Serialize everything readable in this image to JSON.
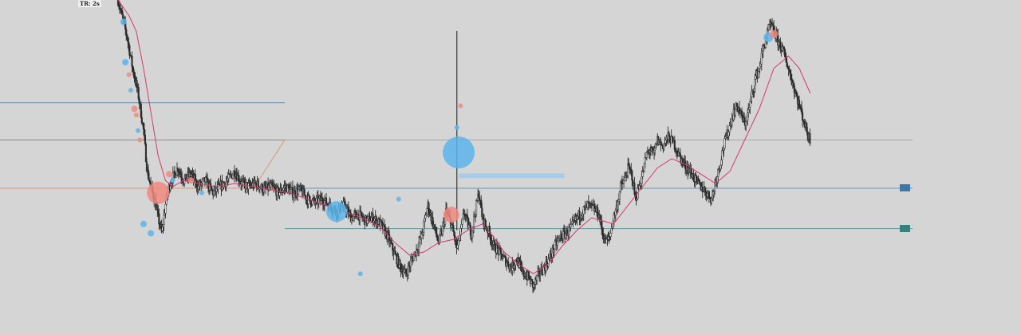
{
  "timeframe_label": "TR: 2s",
  "level_tags": [
    {
      "text": "",
      "color": "#3f77a8",
      "price": 39.5
    },
    {
      "text": "",
      "color": "#3a7f7a",
      "price": 26.5
    }
  ],
  "chart_data": {
    "type": "candlestick",
    "title": "",
    "xlabel": "",
    "ylabel": "",
    "y_range": [
      0,
      100
    ],
    "x_range": [
      0,
      430
    ],
    "grid": false,
    "colors": {
      "background": "#d5d5d5",
      "candle": "#2b2b2b",
      "moving_average": "#d43a6b",
      "bubble_buy": "#5ab4ea",
      "bubble_sell": "#f08a80",
      "level_orange": "#d69a78",
      "level_blue": "#6a93b3",
      "level_teal": "#5f9a9c",
      "liquidity_band": "#9ecbea"
    },
    "price_path": [
      [
        0,
        100
      ],
      [
        5,
        88
      ],
      [
        8,
        78
      ],
      [
        11,
        70
      ],
      [
        14,
        58
      ],
      [
        16,
        45
      ],
      [
        18,
        40
      ],
      [
        20,
        36
      ],
      [
        22,
        30
      ],
      [
        24,
        25
      ],
      [
        26,
        34
      ],
      [
        28,
        40
      ],
      [
        30,
        43
      ],
      [
        33,
        46
      ],
      [
        36,
        42
      ],
      [
        40,
        44
      ],
      [
        44,
        40
      ],
      [
        48,
        42
      ],
      [
        52,
        38
      ],
      [
        56,
        40
      ],
      [
        60,
        42
      ],
      [
        64,
        45
      ],
      [
        68,
        41
      ],
      [
        72,
        40
      ],
      [
        76,
        41
      ],
      [
        80,
        39
      ],
      [
        84,
        40
      ],
      [
        88,
        38
      ],
      [
        92,
        40
      ],
      [
        96,
        38
      ],
      [
        100,
        39
      ],
      [
        104,
        36
      ],
      [
        108,
        35
      ],
      [
        112,
        36
      ],
      [
        116,
        34
      ],
      [
        120,
        32
      ],
      [
        124,
        34
      ],
      [
        128,
        30
      ],
      [
        132,
        31
      ],
      [
        136,
        29
      ],
      [
        140,
        30
      ],
      [
        144,
        28
      ],
      [
        148,
        24
      ],
      [
        152,
        18
      ],
      [
        155,
        14
      ],
      [
        158,
        12
      ],
      [
        161,
        16
      ],
      [
        164,
        20
      ],
      [
        167,
        25
      ],
      [
        170,
        34
      ],
      [
        173,
        28
      ],
      [
        176,
        22
      ],
      [
        178,
        26
      ],
      [
        180,
        32
      ],
      [
        183,
        28
      ],
      [
        186,
        20
      ],
      [
        188,
        25
      ],
      [
        190,
        32
      ],
      [
        192,
        28
      ],
      [
        194,
        25
      ],
      [
        196,
        32
      ],
      [
        198,
        38
      ],
      [
        200,
        30
      ],
      [
        202,
        27
      ],
      [
        204,
        25
      ],
      [
        206,
        21
      ],
      [
        208,
        20
      ],
      [
        210,
        18
      ],
      [
        213,
        16
      ],
      [
        216,
        14
      ],
      [
        219,
        17
      ],
      [
        222,
        12
      ],
      [
        225,
        11
      ],
      [
        228,
        8
      ],
      [
        231,
        12
      ],
      [
        234,
        14
      ],
      [
        237,
        17
      ],
      [
        240,
        21
      ],
      [
        243,
        24
      ],
      [
        246,
        25
      ],
      [
        249,
        27
      ],
      [
        252,
        30
      ],
      [
        255,
        32
      ],
      [
        258,
        34
      ],
      [
        261,
        33
      ],
      [
        264,
        31
      ],
      [
        266,
        25
      ],
      [
        268,
        22
      ],
      [
        270,
        24
      ],
      [
        272,
        30
      ],
      [
        274,
        34
      ],
      [
        276,
        40
      ],
      [
        278,
        42
      ],
      [
        280,
        46
      ],
      [
        282,
        44
      ],
      [
        284,
        36
      ],
      [
        286,
        40
      ],
      [
        288,
        44
      ],
      [
        290,
        50
      ],
      [
        292,
        52
      ],
      [
        294,
        50
      ],
      [
        296,
        55
      ],
      [
        299,
        53
      ],
      [
        302,
        56
      ],
      [
        305,
        54
      ],
      [
        308,
        50
      ],
      [
        311,
        47
      ],
      [
        314,
        45
      ],
      [
        317,
        42
      ],
      [
        320,
        40
      ],
      [
        323,
        38
      ],
      [
        326,
        36
      ],
      [
        328,
        42
      ],
      [
        330,
        46
      ],
      [
        332,
        52
      ],
      [
        334,
        56
      ],
      [
        336,
        60
      ],
      [
        338,
        64
      ],
      [
        340,
        66
      ],
      [
        342,
        63
      ],
      [
        344,
        60
      ],
      [
        346,
        64
      ],
      [
        348,
        70
      ],
      [
        350,
        75
      ],
      [
        352,
        78
      ],
      [
        354,
        84
      ],
      [
        356,
        88
      ],
      [
        358,
        92
      ],
      [
        360,
        90
      ],
      [
        362,
        87
      ],
      [
        364,
        85
      ],
      [
        366,
        82
      ],
      [
        368,
        78
      ],
      [
        370,
        74
      ],
      [
        372,
        70
      ],
      [
        374,
        66
      ],
      [
        376,
        62
      ],
      [
        378,
        58
      ],
      [
        380,
        55
      ]
    ],
    "spike": {
      "x": 186,
      "low": 26,
      "high": 90
    },
    "moving_average": [
      [
        0,
        100
      ],
      [
        6,
        95
      ],
      [
        10,
        90
      ],
      [
        14,
        78
      ],
      [
        18,
        64
      ],
      [
        22,
        50
      ],
      [
        26,
        42
      ],
      [
        30,
        40
      ],
      [
        36,
        42
      ],
      [
        44,
        41
      ],
      [
        54,
        40
      ],
      [
        64,
        41
      ],
      [
        74,
        40
      ],
      [
        84,
        39
      ],
      [
        94,
        38
      ],
      [
        104,
        36
      ],
      [
        114,
        34
      ],
      [
        124,
        32
      ],
      [
        134,
        30
      ],
      [
        144,
        27
      ],
      [
        152,
        22
      ],
      [
        160,
        18
      ],
      [
        168,
        19
      ],
      [
        176,
        22
      ],
      [
        184,
        23
      ],
      [
        192,
        26
      ],
      [
        200,
        28
      ],
      [
        206,
        24
      ],
      [
        212,
        19
      ],
      [
        220,
        15
      ],
      [
        228,
        12
      ],
      [
        236,
        15
      ],
      [
        244,
        21
      ],
      [
        252,
        26
      ],
      [
        260,
        30
      ],
      [
        266,
        29
      ],
      [
        272,
        28
      ],
      [
        280,
        34
      ],
      [
        288,
        40
      ],
      [
        296,
        46
      ],
      [
        304,
        49
      ],
      [
        312,
        47
      ],
      [
        320,
        44
      ],
      [
        328,
        41
      ],
      [
        336,
        45
      ],
      [
        344,
        55
      ],
      [
        352,
        65
      ],
      [
        360,
        78
      ],
      [
        368,
        82
      ],
      [
        374,
        78
      ],
      [
        380,
        70
      ]
    ],
    "levels": [
      {
        "y": 67,
        "color": "level_blue",
        "x_start": 0,
        "x_end": 100
      },
      {
        "y": 55,
        "color": "level_teal",
        "x_start": 0,
        "x_end": 100
      },
      {
        "y": 55,
        "color": "level_orange",
        "x_start": 100,
        "x_end": 390
      },
      {
        "y": 39.5,
        "color": "level_orange",
        "x_start": 0,
        "x_end": 100
      },
      {
        "y": 39.5,
        "color": "level_blue",
        "x_start": 100,
        "x_end": 390
      },
      {
        "y": 26.5,
        "color": "level_teal",
        "x_start": 100,
        "x_end": 390
      }
    ],
    "trend_segments": [
      {
        "from": [
          75,
          40
        ],
        "to": [
          100,
          55
        ],
        "color": "level_orange"
      }
    ],
    "liquidity_bands": [
      {
        "x_start": 187,
        "x_end": 245,
        "y": 43.5
      }
    ],
    "bubbles": [
      {
        "x": 3,
        "y": 93,
        "r": 4,
        "side": "buy"
      },
      {
        "x": 4,
        "y": 80,
        "r": 4,
        "side": "buy"
      },
      {
        "x": 6,
        "y": 76,
        "r": 3,
        "side": "sell"
      },
      {
        "x": 7,
        "y": 71,
        "r": 3,
        "side": "buy"
      },
      {
        "x": 9,
        "y": 65,
        "r": 4,
        "side": "sell"
      },
      {
        "x": 10,
        "y": 63,
        "r": 3,
        "side": "sell"
      },
      {
        "x": 11,
        "y": 58,
        "r": 3,
        "side": "buy"
      },
      {
        "x": 12,
        "y": 55,
        "r": 3,
        "side": "sell"
      },
      {
        "x": 14,
        "y": 28,
        "r": 4,
        "side": "buy"
      },
      {
        "x": 18,
        "y": 25,
        "r": 4,
        "side": "buy"
      },
      {
        "x": 22,
        "y": 38,
        "r": 14,
        "side": "sell"
      },
      {
        "x": 28,
        "y": 44,
        "r": 4,
        "side": "sell"
      },
      {
        "x": 30,
        "y": 42,
        "r": 3,
        "side": "buy"
      },
      {
        "x": 40,
        "y": 42,
        "r": 4,
        "side": "sell"
      },
      {
        "x": 46,
        "y": 38,
        "r": 3,
        "side": "buy"
      },
      {
        "x": 120,
        "y": 32,
        "r": 13,
        "side": "buy"
      },
      {
        "x": 133,
        "y": 12,
        "r": 3,
        "side": "buy"
      },
      {
        "x": 154,
        "y": 36,
        "r": 3,
        "side": "buy"
      },
      {
        "x": 183,
        "y": 31,
        "r": 10,
        "side": "sell"
      },
      {
        "x": 187,
        "y": 51,
        "r": 20,
        "side": "buy"
      },
      {
        "x": 186,
        "y": 59,
        "r": 3,
        "side": "buy"
      },
      {
        "x": 188,
        "y": 66,
        "r": 3,
        "side": "sell"
      },
      {
        "x": 357,
        "y": 88,
        "r": 6,
        "side": "buy"
      },
      {
        "x": 360,
        "y": 89,
        "r": 5,
        "side": "sell"
      }
    ]
  }
}
